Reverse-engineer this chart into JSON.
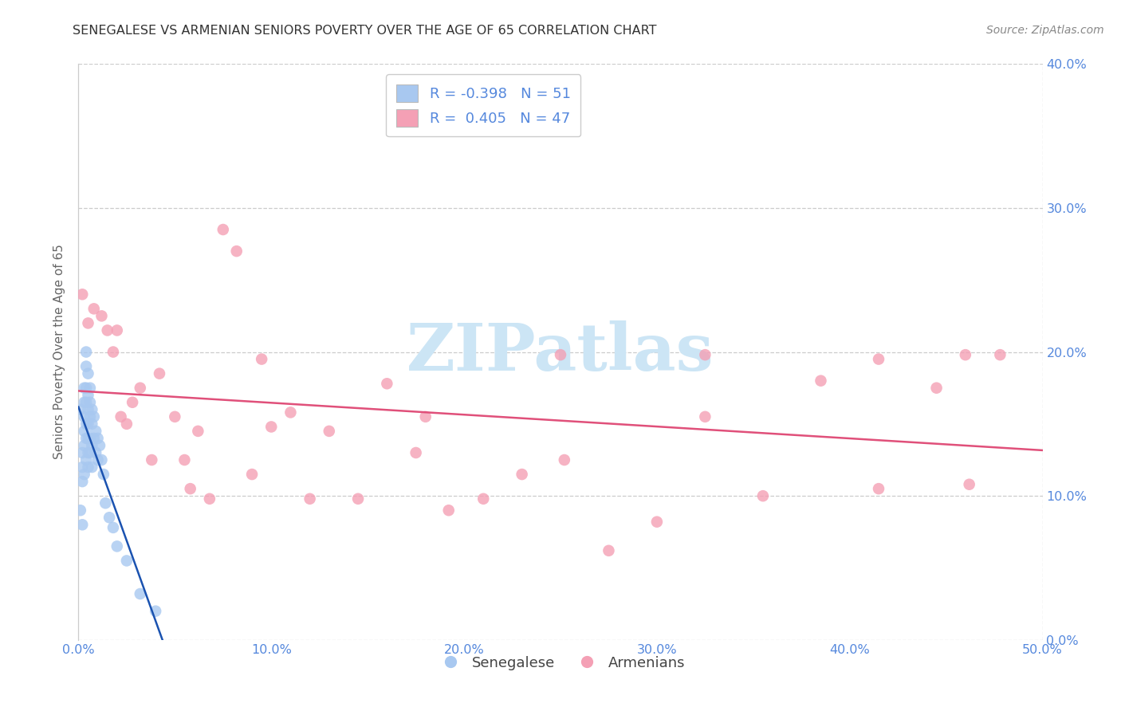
{
  "title": "SENEGALESE VS ARMENIAN SENIORS POVERTY OVER THE AGE OF 65 CORRELATION CHART",
  "source": "Source: ZipAtlas.com",
  "ylabel": "Seniors Poverty Over the Age of 65",
  "xlim": [
    0.0,
    0.5
  ],
  "ylim": [
    0.0,
    0.4
  ],
  "xtick_vals": [
    0.0,
    0.1,
    0.2,
    0.3,
    0.4,
    0.5
  ],
  "xtick_labels": [
    "0.0%",
    "10.0%",
    "20.0%",
    "30.0%",
    "40.0%",
    "50.0%"
  ],
  "ytick_vals": [
    0.0,
    0.1,
    0.2,
    0.3,
    0.4
  ],
  "ytick_labels": [
    "0.0%",
    "10.0%",
    "20.0%",
    "30.0%",
    "40.0%"
  ],
  "legend_r_senegalese": "-0.398",
  "legend_n_senegalese": "51",
  "legend_r_armenian": "0.405",
  "legend_n_armenian": "47",
  "senegalese_color": "#a8c8f0",
  "armenian_color": "#f4a0b5",
  "senegalese_line_color": "#1a52b0",
  "armenian_line_color": "#e0507a",
  "tick_label_color": "#5588dd",
  "title_color": "#333333",
  "ylabel_color": "#666666",
  "source_color": "#888888",
  "grid_color": "#cccccc",
  "senegalese_x": [
    0.001,
    0.001,
    0.002,
    0.002,
    0.002,
    0.002,
    0.003,
    0.003,
    0.003,
    0.003,
    0.003,
    0.003,
    0.004,
    0.004,
    0.004,
    0.004,
    0.004,
    0.004,
    0.004,
    0.005,
    0.005,
    0.005,
    0.005,
    0.005,
    0.005,
    0.005,
    0.006,
    0.006,
    0.006,
    0.006,
    0.006,
    0.007,
    0.007,
    0.007,
    0.007,
    0.008,
    0.008,
    0.009,
    0.009,
    0.01,
    0.01,
    0.011,
    0.012,
    0.013,
    0.014,
    0.016,
    0.018,
    0.02,
    0.025,
    0.032,
    0.04
  ],
  "senegalese_y": [
    0.16,
    0.09,
    0.13,
    0.12,
    0.11,
    0.08,
    0.175,
    0.165,
    0.155,
    0.145,
    0.135,
    0.115,
    0.2,
    0.19,
    0.175,
    0.165,
    0.15,
    0.14,
    0.125,
    0.185,
    0.17,
    0.16,
    0.15,
    0.14,
    0.13,
    0.12,
    0.175,
    0.165,
    0.155,
    0.14,
    0.13,
    0.16,
    0.15,
    0.135,
    0.12,
    0.155,
    0.14,
    0.145,
    0.13,
    0.14,
    0.125,
    0.135,
    0.125,
    0.115,
    0.095,
    0.085,
    0.078,
    0.065,
    0.055,
    0.032,
    0.02
  ],
  "armenian_x": [
    0.002,
    0.005,
    0.008,
    0.012,
    0.015,
    0.018,
    0.02,
    0.022,
    0.025,
    0.028,
    0.032,
    0.038,
    0.042,
    0.05,
    0.055,
    0.062,
    0.068,
    0.075,
    0.082,
    0.09,
    0.1,
    0.11,
    0.12,
    0.13,
    0.145,
    0.16,
    0.175,
    0.192,
    0.21,
    0.23,
    0.252,
    0.275,
    0.3,
    0.325,
    0.355,
    0.385,
    0.415,
    0.445,
    0.462,
    0.478,
    0.325,
    0.415,
    0.46,
    0.25,
    0.18,
    0.095,
    0.058
  ],
  "armenian_y": [
    0.24,
    0.22,
    0.23,
    0.225,
    0.215,
    0.2,
    0.215,
    0.155,
    0.15,
    0.165,
    0.175,
    0.125,
    0.185,
    0.155,
    0.125,
    0.145,
    0.098,
    0.285,
    0.27,
    0.115,
    0.148,
    0.158,
    0.098,
    0.145,
    0.098,
    0.178,
    0.13,
    0.09,
    0.098,
    0.115,
    0.125,
    0.062,
    0.082,
    0.198,
    0.1,
    0.18,
    0.105,
    0.175,
    0.108,
    0.198,
    0.155,
    0.195,
    0.198,
    0.198,
    0.155,
    0.195,
    0.105
  ]
}
